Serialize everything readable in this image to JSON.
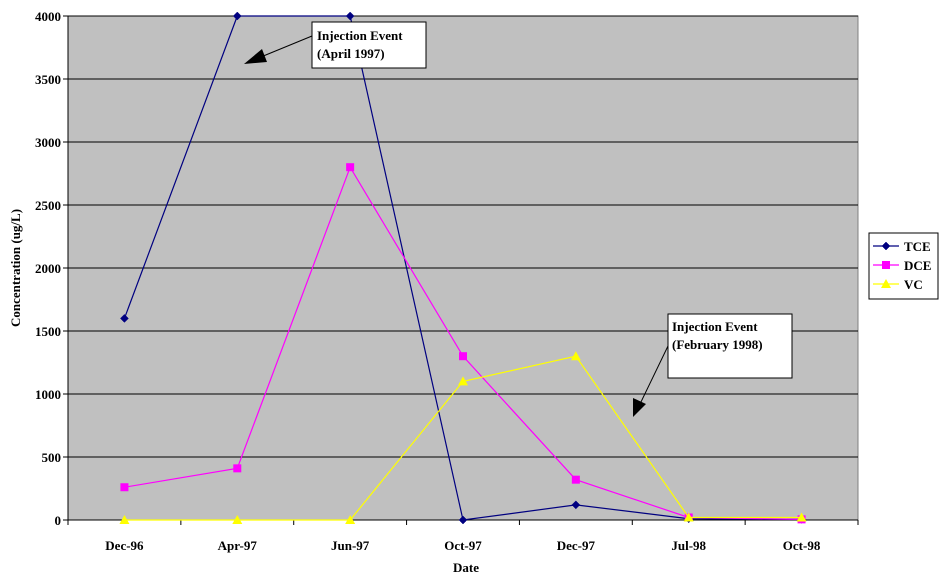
{
  "chart_data": {
    "type": "line",
    "categories": [
      "Dec-96",
      "Apr-97",
      "Jun-97",
      "Oct-97",
      "Dec-97",
      "Jul-98",
      "Oct-98"
    ],
    "xlabel": "Date",
    "ylabel": "Concentration (ug/L)",
    "ylim": [
      0,
      4000
    ],
    "yticks": [
      0,
      500,
      1000,
      1500,
      2000,
      2500,
      3000,
      3500,
      4000
    ],
    "grid": true,
    "legend_position": "right",
    "plot_background": "#c0c0c0",
    "series": [
      {
        "name": "TCE",
        "color": "#000080",
        "marker": "diamond",
        "values": [
          1600,
          4000,
          4000,
          0,
          120,
          10,
          5
        ]
      },
      {
        "name": "DCE",
        "color": "#ff00ff",
        "marker": "square",
        "values": [
          260,
          410,
          2800,
          1300,
          320,
          20,
          5
        ]
      },
      {
        "name": "VC",
        "color": "#ffff00",
        "marker": "triangle",
        "values": [
          0,
          0,
          0,
          1100,
          1300,
          20,
          20
        ]
      }
    ],
    "annotations": [
      {
        "lines": [
          "Injection Event",
          "(April 1997)"
        ]
      },
      {
        "lines": [
          "Injection Event",
          "(February 1998)"
        ]
      }
    ]
  }
}
